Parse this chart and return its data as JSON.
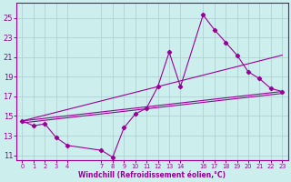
{
  "background_color": "#cceeed",
  "grid_color": "#aacccc",
  "line_color": "#990099",
  "xlabel": "Windchill (Refroidissement éolien,°C)",
  "xlim": [
    -0.5,
    23.5
  ],
  "ylim": [
    10.5,
    26.5
  ],
  "yticks": [
    11,
    13,
    15,
    17,
    19,
    21,
    23,
    25
  ],
  "xticks": [
    0,
    1,
    2,
    3,
    4,
    7,
    8,
    9,
    10,
    11,
    12,
    13,
    14,
    16,
    17,
    18,
    19,
    20,
    21,
    22,
    23
  ],
  "main_line": {
    "x": [
      0,
      1,
      2,
      3,
      4,
      7,
      8,
      9,
      10,
      11,
      12,
      13,
      14,
      16,
      17,
      18,
      19,
      20,
      21,
      22,
      23
    ],
    "y": [
      14.5,
      14.0,
      14.2,
      12.8,
      12.0,
      11.5,
      10.8,
      13.8,
      15.2,
      15.8,
      18.0,
      21.5,
      18.0,
      25.3,
      23.8,
      22.5,
      21.2,
      19.5,
      18.8,
      17.8,
      17.5
    ]
  },
  "trend_lines": [
    {
      "x": [
        0,
        23
      ],
      "y": [
        14.5,
        21.2
      ]
    },
    {
      "x": [
        0,
        23
      ],
      "y": [
        14.5,
        17.5
      ]
    },
    {
      "x": [
        0,
        23
      ],
      "y": [
        14.3,
        17.3
      ]
    }
  ]
}
